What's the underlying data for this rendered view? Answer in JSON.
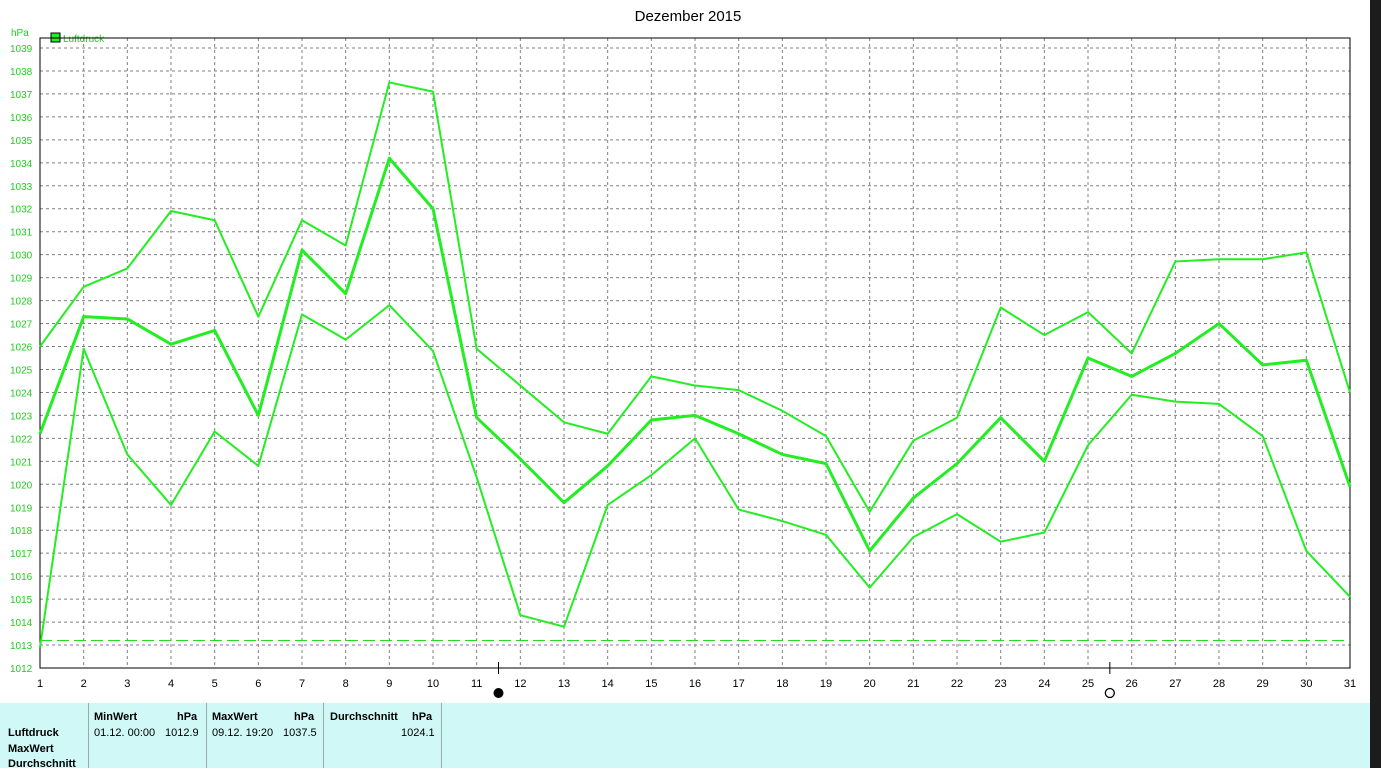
{
  "chart_data": {
    "type": "line",
    "title": "Dezember 2015",
    "ylabel": "hPa",
    "legend": "Luftdruck",
    "legend_position": "top-left",
    "grid": true,
    "ylim": [
      1012,
      1039
    ],
    "x": [
      1,
      2,
      3,
      4,
      5,
      6,
      7,
      8,
      9,
      10,
      11,
      12,
      13,
      14,
      15,
      16,
      17,
      18,
      19,
      20,
      21,
      22,
      23,
      24,
      25,
      26,
      27,
      28,
      29,
      30,
      31
    ],
    "y_ticks": [
      1012,
      1013,
      1014,
      1015,
      1016,
      1017,
      1018,
      1019,
      1020,
      1021,
      1022,
      1023,
      1024,
      1025,
      1026,
      1027,
      1028,
      1029,
      1030,
      1031,
      1032,
      1033,
      1034,
      1035,
      1036,
      1037,
      1038,
      1039
    ],
    "series": [
      {
        "role": "max",
        "values": [
          1026.0,
          1028.6,
          1029.4,
          1031.9,
          1031.5,
          1027.3,
          1031.5,
          1030.4,
          1037.5,
          1037.1,
          1025.9,
          1024.3,
          1022.7,
          1022.2,
          1024.7,
          1024.3,
          1024.1,
          1023.2,
          1022.1,
          1018.8,
          1021.9,
          1022.9,
          1027.7,
          1026.5,
          1027.5,
          1025.7,
          1029.7,
          1029.8,
          1029.8,
          1030.1,
          1024.0
        ]
      },
      {
        "role": "avg",
        "values": [
          1022.2,
          1027.3,
          1027.2,
          1026.1,
          1026.7,
          1023.0,
          1030.2,
          1028.3,
          1034.2,
          1032.0,
          1022.9,
          1021.1,
          1019.2,
          1020.8,
          1022.8,
          1023.0,
          1022.2,
          1021.3,
          1020.9,
          1017.1,
          1019.4,
          1020.9,
          1022.9,
          1021.0,
          1025.5,
          1024.7,
          1025.7,
          1027.0,
          1025.2,
          1025.4,
          1019.9
        ]
      },
      {
        "role": "min",
        "values": [
          1012.9,
          1025.9,
          1021.3,
          1019.1,
          1022.3,
          1020.8,
          1027.4,
          1026.3,
          1027.8,
          1025.8,
          1020.3,
          1014.3,
          1013.8,
          1019.1,
          1020.4,
          1022.0,
          1018.9,
          1018.4,
          1017.8,
          1015.5,
          1017.7,
          1018.7,
          1017.5,
          1017.9,
          1021.7,
          1023.9,
          1023.6,
          1023.5,
          1022.1,
          1017.1,
          1015.1
        ]
      }
    ],
    "reference_line": 1013.2,
    "moon_markers": [
      {
        "day": 11.5,
        "phase": "new-moon"
      },
      {
        "day": 25.5,
        "phase": "full-moon"
      }
    ],
    "colors": {
      "line": "#22ee22",
      "axis_text": "#22cc22",
      "grid": "#808080",
      "title": "#000000"
    }
  },
  "stats": {
    "row_labels": [
      "Luftdruck",
      "MaxWert",
      "Durchschnitt"
    ],
    "min": {
      "header": "MinWert",
      "unit": "hPa",
      "time": "01.12.  00:00",
      "value": "1012.9"
    },
    "max": {
      "header": "MaxWert",
      "unit": "hPa",
      "time": "09.12.  19:20",
      "value": "1037.5"
    },
    "avg": {
      "header": "Durchschnitt",
      "unit": "hPa",
      "value": "1024.1"
    },
    "panel_color": "#cff8f6"
  }
}
